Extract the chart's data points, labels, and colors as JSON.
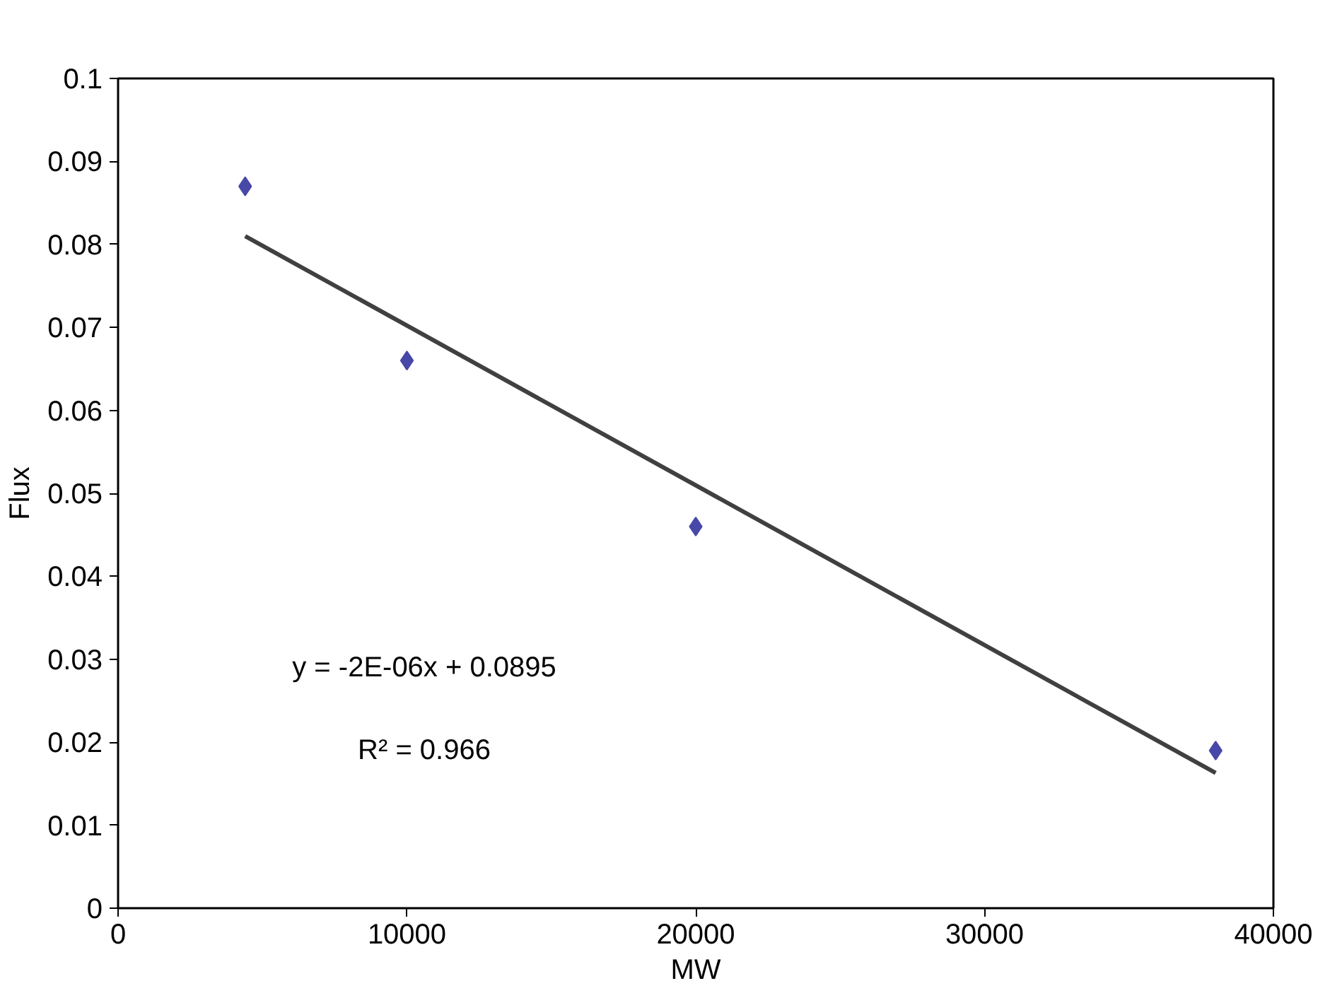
{
  "chart_data": {
    "type": "scatter",
    "xlabel": "MW",
    "ylabel": "Flux",
    "series": [
      {
        "color": "#4848a8",
        "x": [
          4400,
          10000,
          20000,
          38000
        ],
        "values": [
          0.087,
          0.066,
          0.046,
          0.019
        ],
        "marker": "diamond"
      },
      {
        "type": "line",
        "color": "#404040",
        "x": [
          4400,
          38000
        ],
        "values": [
          0.081,
          0.0163
        ],
        "marker": "none",
        "line_style": "solid"
      }
    ],
    "annotations": [
      "y = -2E-06x + 0.0895",
      "R² = 0.966"
    ],
    "xlim": [
      0,
      40000
    ],
    "xticks": [
      0,
      10000,
      20000,
      30000,
      40000
    ],
    "ylim": [
      0,
      0.1
    ],
    "yticks": [
      0,
      0.01,
      0.02,
      0.03,
      0.04,
      0.05,
      0.06,
      0.07,
      0.08,
      0.09,
      0.1
    ],
    "grid": false
  }
}
